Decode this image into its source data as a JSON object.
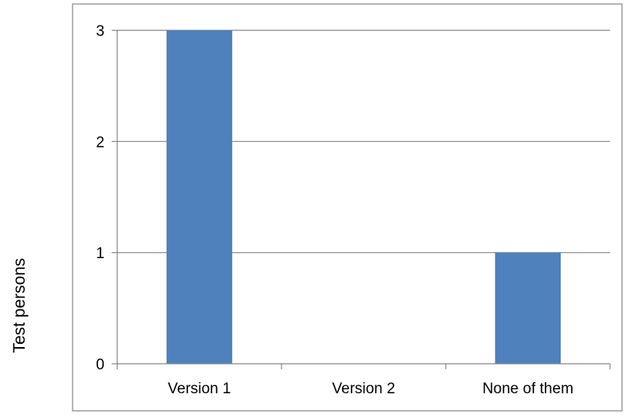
{
  "chart_data": {
    "type": "bar",
    "title": "",
    "xlabel": "",
    "ylabel": "Test persons",
    "categories": [
      "Version 1",
      "Version 2",
      "None of them"
    ],
    "values": [
      3,
      0,
      1
    ],
    "ylim": [
      0,
      3
    ],
    "yticks": [
      "0",
      "1",
      "2",
      "3"
    ],
    "grid": true,
    "legend": "none",
    "colors": {
      "bar": "#4f81bd",
      "gridline": "#868686",
      "axis": "#868686",
      "frame": "#868686"
    }
  }
}
